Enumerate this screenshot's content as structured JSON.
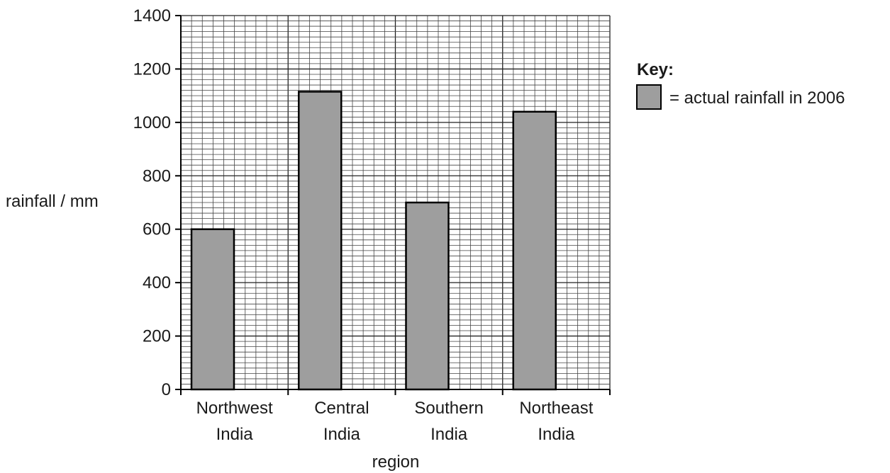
{
  "chart_data": {
    "type": "bar",
    "categories": [
      [
        "Northwest",
        "India"
      ],
      [
        "Central",
        "India"
      ],
      [
        "Southern",
        "India"
      ],
      [
        "Northeast",
        "India"
      ]
    ],
    "series": [
      {
        "name": "= actual rainfall in 2006",
        "values": [
          600,
          1115,
          700,
          1040
        ]
      }
    ],
    "xlabel": "region",
    "ylabel": "rainfall / mm",
    "ylim": [
      0,
      1400
    ],
    "yticks": [
      0,
      200,
      400,
      600,
      800,
      1000,
      1200,
      1400
    ],
    "grid": true,
    "legend_position": "right"
  },
  "key": {
    "title": "Key:",
    "entry": "= actual rainfall in 2006"
  },
  "colors": {
    "bar_fill": "#9e9e9e",
    "bar_stroke": "#000000",
    "grid_major": "#222222",
    "grid_minor": "#444444"
  }
}
